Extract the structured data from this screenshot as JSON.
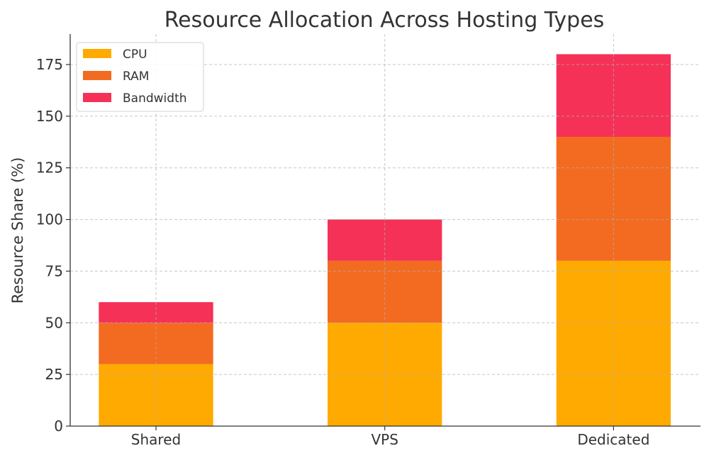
{
  "chart_data": {
    "type": "bar",
    "stacked": true,
    "title": "Resource Allocation Across Hosting Types",
    "xlabel": "",
    "ylabel": "Resource Share (%)",
    "categories": [
      "Shared",
      "VPS",
      "Dedicated"
    ],
    "series": [
      {
        "name": "CPU",
        "values": [
          30,
          50,
          80
        ],
        "color": "#FFAA00"
      },
      {
        "name": "RAM",
        "values": [
          20,
          30,
          60
        ],
        "color": "#F26B21"
      },
      {
        "name": "Bandwidth",
        "values": [
          10,
          20,
          40
        ],
        "color": "#F53158"
      }
    ],
    "ylim": [
      0,
      189
    ],
    "yticks": [
      0,
      25,
      50,
      75,
      100,
      125,
      150,
      175
    ],
    "grid": true,
    "legend_position": "top-left"
  }
}
